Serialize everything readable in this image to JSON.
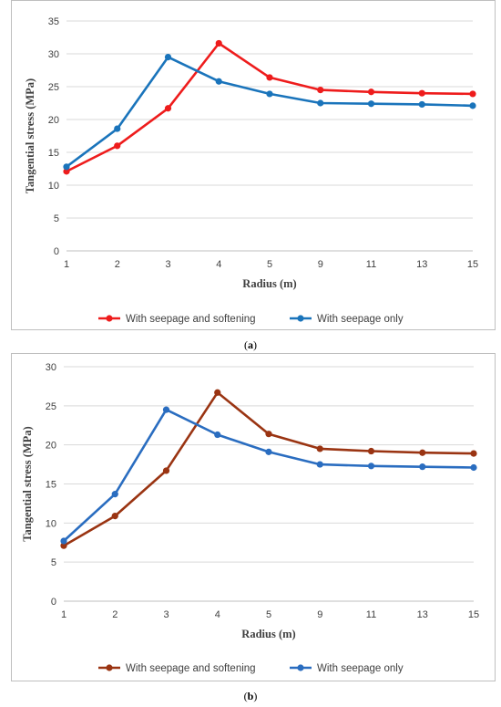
{
  "chart_data": [
    {
      "type": "line",
      "panel_label": "a",
      "categories": [
        "1",
        "2",
        "3",
        "4",
        "5",
        "9",
        "11",
        "13",
        "15"
      ],
      "xlabel": "Radius (m)",
      "ylabel": "Tangential stress (MPa)",
      "ylim": [
        0,
        35
      ],
      "yticks": [
        0,
        5,
        10,
        15,
        20,
        25,
        30,
        35
      ],
      "grid": true,
      "legend_position": "bottom",
      "series": [
        {
          "name": "With seepage and softening",
          "color": "#ee1c1c",
          "values": [
            12.1,
            16.0,
            21.7,
            31.6,
            26.4,
            24.5,
            24.2,
            24.0,
            23.9
          ]
        },
        {
          "name": "With seepage only",
          "color": "#1a74bb",
          "values": [
            12.8,
            18.6,
            29.5,
            25.8,
            23.9,
            22.5,
            22.4,
            22.3,
            22.1
          ]
        }
      ]
    },
    {
      "type": "line",
      "panel_label": "b",
      "categories": [
        "1",
        "2",
        "3",
        "4",
        "5",
        "9",
        "11",
        "13",
        "15"
      ],
      "xlabel": "Radius (m)",
      "ylabel": "Tangential stress (MPa)",
      "ylim": [
        0,
        30
      ],
      "yticks": [
        0,
        5,
        10,
        15,
        20,
        25,
        30
      ],
      "grid": true,
      "legend_position": "bottom",
      "series": [
        {
          "name": "With seepage and softening",
          "color": "#9a3412",
          "values": [
            7.1,
            10.9,
            16.7,
            26.7,
            21.4,
            19.5,
            19.2,
            19.0,
            18.9
          ]
        },
        {
          "name": "With seepage only",
          "color": "#2a6dc0",
          "values": [
            7.7,
            13.7,
            24.5,
            21.3,
            19.1,
            17.5,
            17.3,
            17.2,
            17.1
          ]
        }
      ]
    }
  ]
}
